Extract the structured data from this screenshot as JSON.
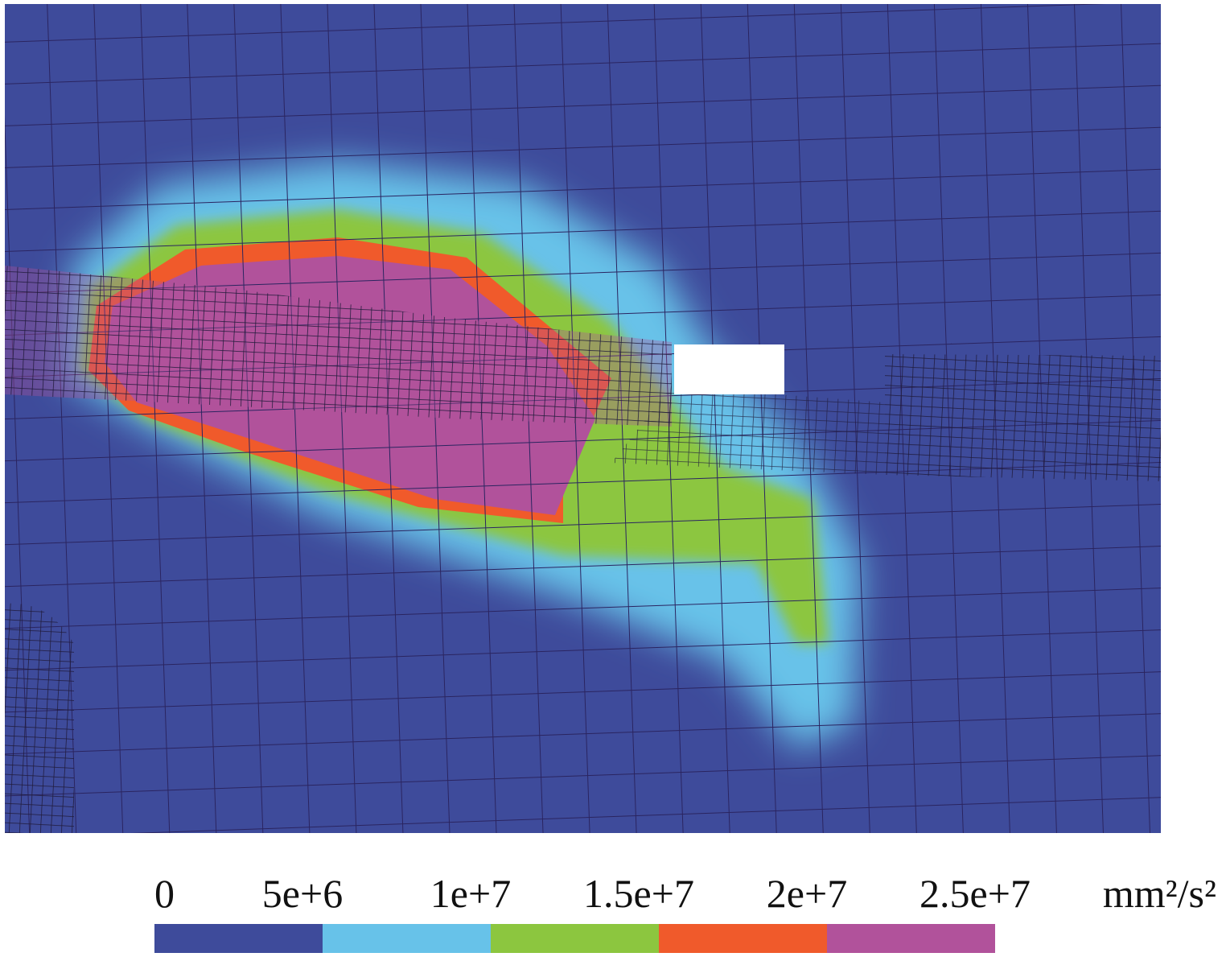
{
  "colorbar": {
    "ticks": [
      {
        "value": 0,
        "label": "0"
      },
      {
        "value": 5000000,
        "label": "5e+6"
      },
      {
        "value": 10000000,
        "label": "1e+7"
      },
      {
        "value": 15000000,
        "label": "1.5e+7"
      },
      {
        "value": 20000000,
        "label": "2e+7"
      },
      {
        "value": 25000000,
        "label": "2.5e+7"
      }
    ],
    "unit": "mm²/s²",
    "colors": [
      "#3e4b9b",
      "#67c2e9",
      "#8cc63f",
      "#f05a2b",
      "#b1529b"
    ]
  }
}
